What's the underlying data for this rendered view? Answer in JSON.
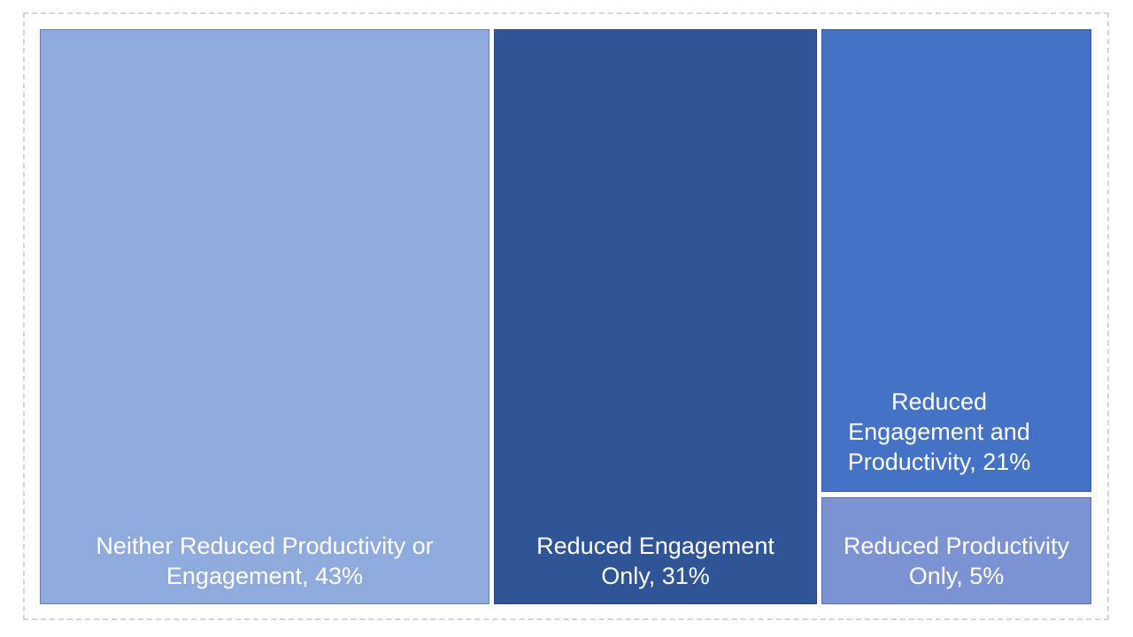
{
  "chart_data": {
    "type": "pie",
    "layout": "treemap",
    "title": "",
    "categories": [
      "Neither Reduced Productivity or Engagement",
      "Reduced Engagement Only",
      "Reduced Engagement and Productivity",
      "Reduced Productivity Only"
    ],
    "values": [
      43,
      31,
      21,
      5
    ],
    "unit": "%",
    "colors": [
      "#8FAADC",
      "#2F5597",
      "#4472C4",
      "#7B93D2"
    ],
    "legend_position": "none",
    "data_labels": "category name and percentage, white text, anchored bottom-center inside each tile",
    "background": "#FFFFFF",
    "frame_border_color": "#D6D6D6"
  },
  "treemap": {
    "segments": [
      {
        "category": "Neither Reduced Productivity or Engagement",
        "label": "Neither Reduced Productivity or\nEngagement, 43%",
        "value_pct": 43,
        "color": "#8FAADC",
        "text_color": "#FFFFFF"
      },
      {
        "category": "Reduced Engagement Only",
        "label": "Reduced Engagement\nOnly, 31%",
        "value_pct": 31,
        "color": "#2F5597",
        "text_color": "#FFFFFF"
      },
      {
        "category": "Reduced Engagement and Productivity",
        "label": "Reduced\nEngagement and\nProductivity, 21%",
        "value_pct": 21,
        "color": "#4472C4",
        "text_color": "#FFFFFF"
      },
      {
        "category": "Reduced Productivity Only",
        "label": "Reduced Productivity\nOnly, 5%",
        "value_pct": 5,
        "color": "#7B93D2",
        "text_color": "#FFFFFF"
      }
    ]
  }
}
